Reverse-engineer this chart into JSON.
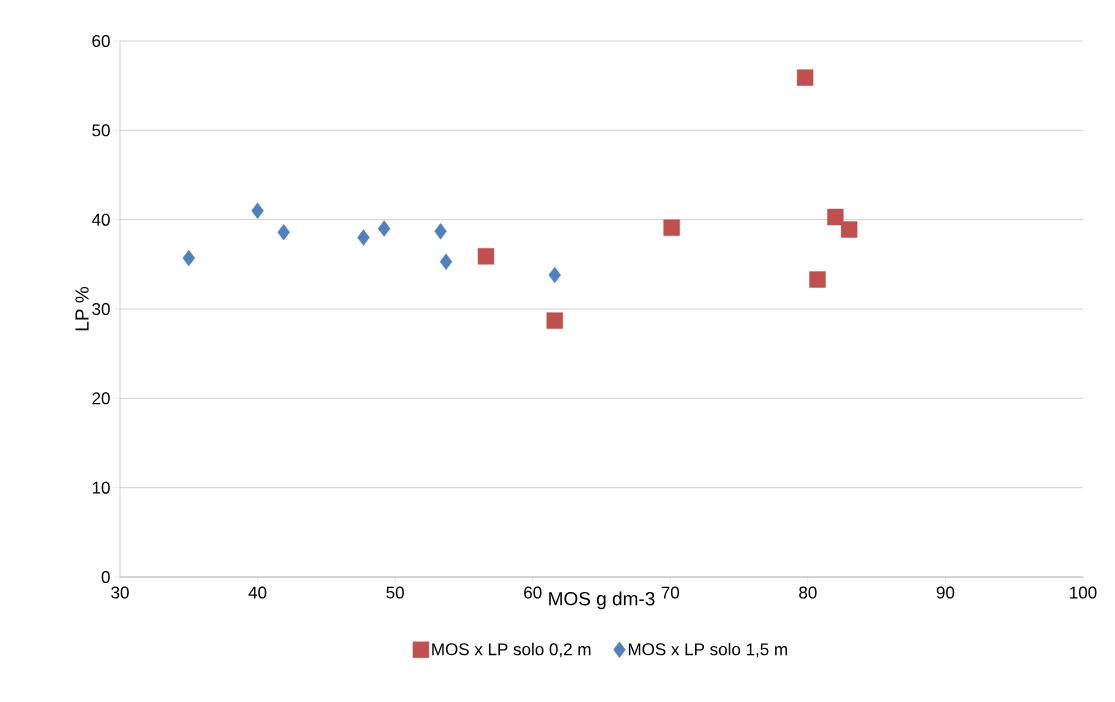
{
  "chart_data": {
    "type": "scatter",
    "xlabel": "MOS  g dm-3",
    "ylabel": "LP %",
    "xlim": [
      30,
      100
    ],
    "xticks": [
      30,
      40,
      50,
      60,
      70,
      80,
      90,
      100
    ],
    "ylim": [
      0,
      60
    ],
    "yticks": [
      0,
      10,
      20,
      30,
      40,
      50,
      60
    ],
    "grid": "y",
    "legend": "bottom",
    "series": [
      {
        "name": "MOS x LP solo 0,2 m",
        "color": "#c0504d",
        "marker": "square",
        "x": [
          79.8,
          56.6,
          61.6,
          70.1,
          80.7,
          82.0,
          83.0
        ],
        "values": [
          55.9,
          35.9,
          28.7,
          39.1,
          33.3,
          40.3,
          38.9
        ]
      },
      {
        "name": "MOS x LP solo 1,5 m",
        "color": "#4f81bd",
        "marker": "diamond",
        "x": [
          35.0,
          40.0,
          41.9,
          47.7,
          49.2,
          53.3,
          53.7,
          61.6
        ],
        "values": [
          35.7,
          41.0,
          38.6,
          38.0,
          39.0,
          38.7,
          35.3,
          33.8
        ]
      }
    ]
  }
}
